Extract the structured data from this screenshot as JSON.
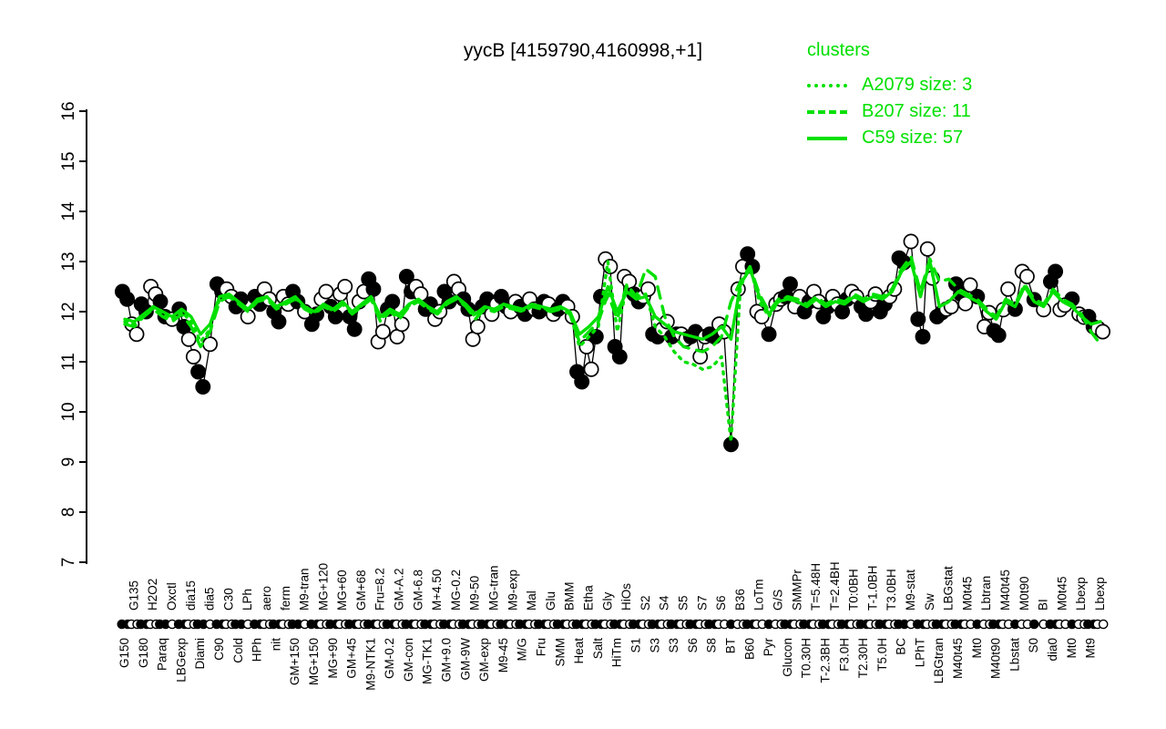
{
  "window": {
    "kind": "r-graphics-plot"
  },
  "colors": {
    "accent_green": "#00e000",
    "point_black": "#000000",
    "background": "#ffffff"
  },
  "chart_data": {
    "type": "line",
    "title": "yycB [4159790,4160998,+1]",
    "xlabel": "",
    "ylabel": "",
    "ylim": [
      7,
      16
    ],
    "grid": false,
    "y_axis": {
      "ticks": [
        7,
        8,
        9,
        10,
        11,
        12,
        13,
        14,
        15,
        16
      ]
    },
    "legend": {
      "title": "clusters",
      "position": "top-right",
      "entries": [
        {
          "name": "A2079",
          "size": 3,
          "label": "A2079 size: 3",
          "line_style": "dotted"
        },
        {
          "name": "B207",
          "size": 11,
          "label": "B207 size: 11",
          "line_style": "dashed"
        },
        {
          "name": "C59",
          "size": 57,
          "label": "C59 size: 57",
          "line_style": "solid"
        }
      ]
    },
    "point_style_note": "conditions alternate filled(black)/open(white) circles; labels alternate bottom/top rows, rotated 90deg; rug of dots along baseline",
    "conditions": [
      {
        "label": "G150",
        "points": [
          12.4,
          12.25
        ]
      },
      {
        "label": "G135",
        "points": [
          11.75,
          11.55
        ]
      },
      {
        "label": "G180",
        "points": [
          12.15,
          12.0
        ]
      },
      {
        "label": "H2O2",
        "points": [
          12.5,
          12.35
        ]
      },
      {
        "label": "Paraq",
        "points": [
          12.2,
          11.9
        ]
      },
      {
        "label": "Oxctl",
        "points": [
          11.85
        ]
      },
      {
        "label": "LBGexp",
        "points": [
          12.05,
          11.7
        ]
      },
      {
        "label": "dia15",
        "points": [
          11.45,
          11.1
        ]
      },
      {
        "label": "Diami",
        "points": [
          10.8,
          10.5
        ]
      },
      {
        "label": "dia5",
        "points": [
          11.35
        ]
      },
      {
        "label": "C90",
        "points": [
          12.55,
          12.4
        ]
      },
      {
        "label": "C30",
        "points": [
          12.45,
          12.3
        ]
      },
      {
        "label": "Cold",
        "points": [
          12.1,
          12.25
        ]
      },
      {
        "label": "LPh",
        "points": [
          11.9
        ]
      },
      {
        "label": "HPh",
        "points": [
          12.3,
          12.15
        ]
      },
      {
        "label": "aero",
        "points": [
          12.45,
          12.25
        ]
      },
      {
        "label": "nit",
        "points": [
          12.0,
          11.8
        ]
      },
      {
        "label": "ferm",
        "points": [
          12.3,
          12.15
        ]
      },
      {
        "label": "GM+150",
        "points": [
          12.4,
          12.2
        ]
      },
      {
        "label": "M9-tran",
        "points": [
          12.0
        ]
      },
      {
        "label": "MG+150",
        "points": [
          11.75,
          11.95
        ]
      },
      {
        "label": "MG+120",
        "points": [
          12.25,
          12.4
        ]
      },
      {
        "label": "MG+90",
        "points": [
          12.1,
          11.9
        ]
      },
      {
        "label": "MG+60",
        "points": [
          12.35,
          12.5
        ]
      },
      {
        "label": "GM+45",
        "points": [
          11.9,
          11.65
        ]
      },
      {
        "label": "GM+68",
        "points": [
          12.2,
          12.4
        ]
      },
      {
        "label": "M9-NTK1",
        "points": [
          12.65,
          12.45
        ]
      },
      {
        "label": "Fru=8.2",
        "points": [
          11.4,
          11.6
        ]
      },
      {
        "label": "GM-0.2",
        "points": [
          12.05,
          12.2
        ]
      },
      {
        "label": "GM-A.2",
        "points": [
          11.5,
          11.75
        ]
      },
      {
        "label": "GM-con",
        "points": [
          12.7,
          12.4
        ]
      },
      {
        "label": "GM-6.8",
        "points": [
          12.5,
          12.35
        ]
      },
      {
        "label": "MG-TK1",
        "points": [
          12.05,
          12.15
        ]
      },
      {
        "label": "M+4.50",
        "points": [
          11.85,
          12.0
        ]
      },
      {
        "label": "GM+9.0",
        "points": [
          12.4,
          12.2
        ]
      },
      {
        "label": "MG-0.2",
        "points": [
          12.6,
          12.45
        ]
      },
      {
        "label": "GM-9W",
        "points": [
          12.25,
          12.05
        ]
      },
      {
        "label": "M9-50",
        "points": [
          11.45,
          11.7
        ]
      },
      {
        "label": "GM-exp",
        "points": [
          12.1,
          12.25
        ]
      },
      {
        "label": "MG-tran",
        "points": [
          11.95,
          12.15
        ]
      },
      {
        "label": "M9-45",
        "points": [
          12.3,
          12.1
        ]
      },
      {
        "label": "M9-exp",
        "points": [
          12.0,
          12.2
        ]
      },
      {
        "label": "M/G",
        "points": [
          12.1,
          11.95
        ]
      },
      {
        "label": "Mal",
        "points": [
          12.25,
          12.05
        ]
      },
      {
        "label": "Fru",
        "points": [
          12.0,
          12.2
        ]
      },
      {
        "label": "Glu",
        "points": [
          12.15,
          11.95
        ]
      },
      {
        "label": "SMM",
        "points": [
          12.05,
          12.2
        ]
      },
      {
        "label": "BMM",
        "points": [
          12.1,
          11.9
        ]
      },
      {
        "label": "Heat",
        "points": [
          10.8,
          10.6
        ]
      },
      {
        "label": "Etha",
        "points": [
          11.3,
          10.85
        ]
      },
      {
        "label": "Salt",
        "points": [
          11.5,
          12.3
        ]
      },
      {
        "label": "Gly",
        "points": [
          13.05,
          12.9
        ]
      },
      {
        "label": "HiTm",
        "points": [
          11.3,
          11.1
        ]
      },
      {
        "label": "HiOs",
        "points": [
          12.7,
          12.6
        ]
      },
      {
        "label": "S1",
        "points": [
          12.35,
          12.2
        ]
      },
      {
        "label": "S2",
        "points": [
          12.3,
          12.45
        ]
      },
      {
        "label": "S3",
        "points": [
          11.55,
          11.5
        ]
      },
      {
        "label": "S4",
        "points": [
          11.65,
          11.8
        ]
      },
      {
        "label": "S3",
        "points": [
          11.5,
          11.55
        ]
      },
      {
        "label": "S5",
        "points": [
          11.55,
          11.45
        ]
      },
      {
        "label": "S6",
        "points": [
          11.5,
          11.6
        ]
      },
      {
        "label": "S7",
        "points": [
          11.1,
          11.5
        ]
      },
      {
        "label": "S8",
        "points": [
          11.55,
          11.5
        ]
      },
      {
        "label": "S6",
        "points": [
          11.75,
          11.6
        ]
      },
      {
        "label": "BT",
        "points": [
          9.35
        ]
      },
      {
        "label": "B36",
        "points": [
          12.45,
          12.9
        ]
      },
      {
        "label": "B60",
        "points": [
          13.15,
          12.9
        ]
      },
      {
        "label": "LoTm",
        "points": [
          12.0,
          11.9
        ]
      },
      {
        "label": "Pyr",
        "points": [
          11.55
        ]
      },
      {
        "label": "G/S",
        "points": [
          12.15,
          12.25
        ]
      },
      {
        "label": "Glucon",
        "points": [
          12.3,
          12.55
        ]
      },
      {
        "label": "SMMPr",
        "points": [
          12.1,
          12.3
        ]
      },
      {
        "label": "T0.30H",
        "points": [
          12.0,
          12.2
        ]
      },
      {
        "label": "T=5.48H",
        "points": [
          12.4,
          12.2
        ]
      },
      {
        "label": "T-2.3BH",
        "points": [
          11.9,
          12.1
        ]
      },
      {
        "label": "T=2.4BH",
        "points": [
          12.3,
          12.15
        ]
      },
      {
        "label": "F3.0H",
        "points": [
          12.0,
          12.25
        ]
      },
      {
        "label": "T0:0BH",
        "points": [
          12.4,
          12.3
        ]
      },
      {
        "label": "T2.30H",
        "points": [
          12.1,
          11.95
        ]
      },
      {
        "label": "T-1.0BH",
        "points": [
          12.2,
          12.35
        ]
      },
      {
        "label": "T5.0H",
        "points": [
          12.0,
          12.15
        ]
      },
      {
        "label": "T3.0BH",
        "points": [
          12.3,
          12.45
        ]
      },
      {
        "label": "BC",
        "points": [
          13.07,
          12.98
        ]
      },
      {
        "label": "M9-stat",
        "points": [
          13.4
        ]
      },
      {
        "label": "LPhT",
        "points": [
          11.85,
          11.5
        ]
      },
      {
        "label": "Sw",
        "points": [
          13.25,
          12.67
        ]
      },
      {
        "label": "LBGtran",
        "points": [
          11.9,
          11.98
        ]
      },
      {
        "label": "LBGstat",
        "points": [
          12.05,
          12.1
        ]
      },
      {
        "label": "M40t45",
        "points": [
          12.55,
          12.35
        ]
      },
      {
        "label": "M0t45",
        "points": [
          12.16,
          12.53
        ]
      },
      {
        "label": "Mt0",
        "points": [
          12.3
        ]
      },
      {
        "label": "Lbtran",
        "points": [
          11.7,
          11.98
        ]
      },
      {
        "label": "M40t90",
        "points": [
          11.62,
          11.53
        ]
      },
      {
        "label": "M40t45",
        "points": [
          12.04,
          12.45
        ]
      },
      {
        "label": "Lbstat",
        "points": [
          12.05
        ]
      },
      {
        "label": "M0t90",
        "points": [
          12.8,
          12.7
        ]
      },
      {
        "label": "S0",
        "points": [
          12.24
        ]
      },
      {
        "label": "BI",
        "points": [
          12.04
        ]
      },
      {
        "label": "dia0",
        "points": [
          12.6,
          12.8
        ]
      },
      {
        "label": "M0t45",
        "points": [
          12.04,
          12.13
        ]
      },
      {
        "label": "Mt0",
        "points": [
          12.25
        ]
      },
      {
        "label": "Lbexp",
        "points": [
          11.95,
          11.89
        ]
      },
      {
        "label": "Mt9",
        "points": [
          11.9,
          11.7
        ]
      },
      {
        "label": "Lbexp",
        "points": [
          11.67,
          11.6
        ]
      }
    ],
    "series": [
      {
        "name": "A2079",
        "line_style": "dotted",
        "values": [
          11.8,
          11.75,
          11.92,
          12.07,
          11.95,
          11.85,
          12.0,
          11.8,
          11.4,
          11.65,
          12.25,
          12.3,
          12.18,
          12.02,
          12.22,
          12.28,
          12.08,
          12.18,
          12.28,
          12.08,
          11.98,
          12.12,
          12.02,
          12.18,
          11.98,
          12.12,
          12.28,
          11.85,
          12.02,
          11.9,
          12.12,
          12.22,
          12.08,
          11.98,
          12.18,
          12.28,
          12.12,
          11.9,
          12.08,
          12.02,
          12.12,
          12.08,
          12.02,
          12.12,
          12.08,
          12.02,
          12.08,
          11.98,
          11.3,
          11.5,
          11.7,
          13.0,
          11.6,
          12.5,
          12.3,
          12.35,
          11.7,
          11.5,
          11.2,
          11.0,
          10.95,
          10.85,
          10.9,
          11.1,
          9.4,
          12.5,
          12.9,
          12.2,
          11.9,
          12.2,
          12.3,
          12.2,
          12.1,
          12.25,
          12.1,
          12.2,
          12.15,
          12.3,
          12.2,
          12.3,
          12.25,
          12.4,
          12.8,
          13.0,
          12.3,
          13.0,
          12.1,
          12.2,
          12.4,
          12.3,
          12.2,
          12.0,
          11.85,
          12.2,
          12.1,
          12.5,
          12.2,
          12.1,
          12.4,
          12.2,
          12.1,
          11.9,
          11.75,
          11.8
        ]
      },
      {
        "name": "B207",
        "line_style": "dashed",
        "values": [
          11.75,
          11.7,
          11.9,
          12.05,
          11.9,
          11.8,
          11.95,
          11.7,
          11.3,
          11.6,
          12.2,
          12.3,
          12.15,
          12.0,
          12.2,
          12.25,
          12.05,
          12.15,
          12.25,
          12.05,
          11.95,
          12.1,
          12.0,
          12.15,
          11.95,
          12.1,
          12.25,
          11.8,
          12.0,
          11.85,
          12.1,
          12.2,
          12.05,
          11.95,
          12.15,
          12.25,
          12.1,
          11.85,
          12.05,
          12.0,
          12.1,
          12.05,
          12.0,
          12.1,
          12.05,
          12.0,
          12.05,
          11.95,
          11.4,
          11.6,
          11.8,
          12.35,
          11.85,
          12.55,
          12.3,
          12.85,
          12.7,
          11.9,
          11.5,
          11.3,
          11.25,
          11.2,
          11.3,
          11.5,
          12.2,
          12.6,
          12.9,
          12.35,
          12.0,
          12.25,
          12.3,
          12.25,
          12.15,
          12.3,
          12.15,
          12.25,
          12.2,
          12.35,
          12.25,
          12.35,
          12.3,
          12.45,
          12.85,
          13.1,
          12.4,
          13.05,
          12.6,
          12.65,
          12.45,
          12.35,
          12.25,
          12.05,
          11.9,
          12.25,
          12.15,
          12.55,
          12.25,
          12.15,
          12.45,
          12.25,
          12.15,
          11.95,
          11.6,
          11.35
        ]
      },
      {
        "name": "C59",
        "line_style": "solid",
        "values": [
          11.85,
          11.8,
          11.95,
          12.1,
          12.0,
          11.9,
          12.05,
          11.9,
          11.55,
          11.75,
          12.3,
          12.35,
          12.2,
          12.05,
          12.25,
          12.3,
          12.1,
          12.2,
          12.3,
          12.1,
          12.0,
          12.15,
          12.05,
          12.2,
          12.0,
          12.15,
          12.3,
          11.9,
          12.05,
          11.95,
          12.15,
          12.25,
          12.1,
          12.0,
          12.2,
          12.3,
          12.15,
          11.95,
          12.1,
          12.05,
          12.15,
          12.1,
          12.05,
          12.15,
          12.1,
          12.05,
          12.1,
          12.0,
          11.55,
          11.7,
          11.9,
          12.5,
          12.0,
          12.4,
          12.25,
          12.3,
          11.9,
          11.75,
          11.6,
          11.55,
          11.5,
          11.45,
          11.55,
          11.7,
          11.45,
          12.55,
          12.85,
          12.3,
          11.95,
          12.2,
          12.25,
          12.2,
          12.1,
          12.25,
          12.1,
          12.2,
          12.15,
          12.3,
          12.2,
          12.3,
          12.25,
          12.4,
          12.8,
          13.0,
          12.3,
          13.0,
          12.1,
          12.2,
          12.4,
          12.3,
          12.2,
          12.0,
          11.85,
          12.2,
          12.1,
          12.5,
          12.2,
          12.1,
          12.4,
          12.2,
          12.1,
          11.9,
          11.75,
          11.8
        ]
      }
    ]
  }
}
